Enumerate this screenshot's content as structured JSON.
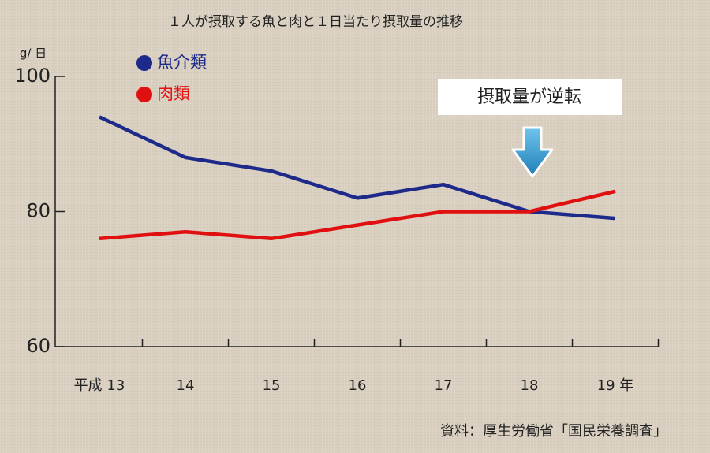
{
  "chart_data": {
    "type": "line",
    "title": "１人が摂取する魚と肉と１日当たり摂取量の推移",
    "y_label": "g/ 日",
    "categories": [
      "平成 13",
      "14",
      "15",
      "16",
      "17",
      "18",
      "19 年"
    ],
    "series": [
      {
        "name": "魚介類",
        "color": "#1e2a8a",
        "values": [
          94,
          88,
          86,
          82,
          84,
          80,
          79
        ]
      },
      {
        "name": "肉類",
        "color": "#e01010",
        "values": [
          76,
          77,
          76,
          78,
          80,
          80,
          83
        ]
      }
    ],
    "ylim": [
      60,
      100
    ],
    "yticks": [
      60,
      80,
      100
    ],
    "annotation": "摂取量が逆転",
    "source": "資料：厚生労働省「国民栄養調査」"
  }
}
